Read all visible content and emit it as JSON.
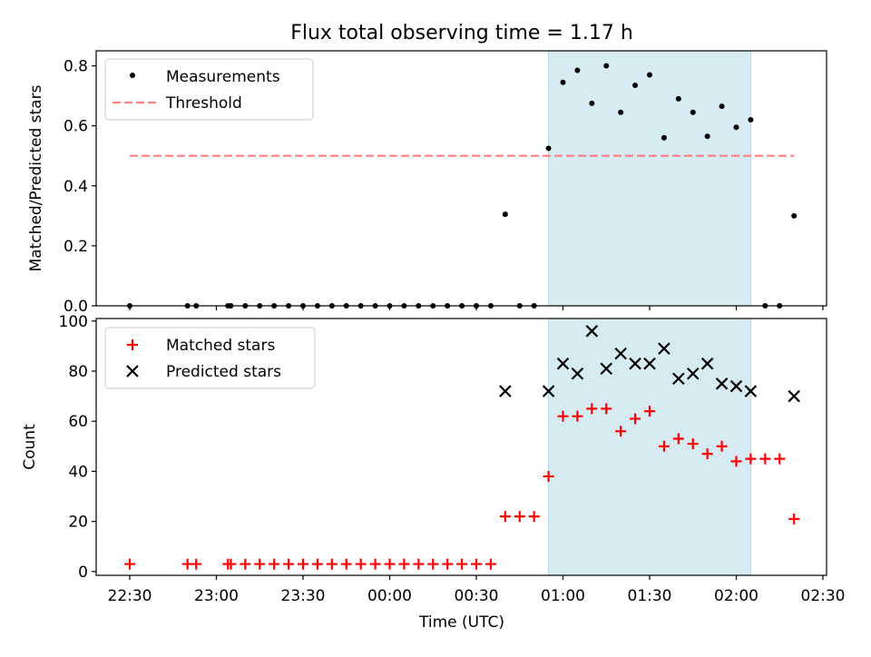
{
  "chart_data": [
    {
      "type": "scatter",
      "title": "Flux total observing time = 1.17 h",
      "ylabel": "Matched/Predicted stars",
      "ylim": [
        0,
        0.85
      ],
      "yticks": [
        "0.0",
        "0.2",
        "0.4",
        "0.6",
        "0.8"
      ],
      "ytick_values": [
        0,
        0.2,
        0.4,
        0.6,
        0.8
      ],
      "shaded_region": {
        "x_start": "00:55",
        "x_end": "02:05",
        "color": "#add8e6"
      },
      "threshold": {
        "name": "Threshold",
        "value": 0.5,
        "x_start": "22:30",
        "x_end": "02:20",
        "color": "#ff7f7f"
      },
      "legend_position": "upper-left",
      "series": [
        {
          "name": "Measurements",
          "color": "#000000",
          "marker": "dot",
          "points": [
            [
              "22:30",
              0
            ],
            [
              "22:50",
              0
            ],
            [
              "22:53",
              0
            ],
            [
              "23:04",
              0
            ],
            [
              "23:05",
              0
            ],
            [
              "23:10",
              0
            ],
            [
              "23:15",
              0
            ],
            [
              "23:20",
              0
            ],
            [
              "23:25",
              0
            ],
            [
              "23:30",
              0
            ],
            [
              "23:35",
              0
            ],
            [
              "23:40",
              0
            ],
            [
              "23:45",
              0
            ],
            [
              "23:50",
              0
            ],
            [
              "23:55",
              0
            ],
            [
              "00:00",
              0
            ],
            [
              "00:05",
              0
            ],
            [
              "00:10",
              0
            ],
            [
              "00:15",
              0
            ],
            [
              "00:20",
              0
            ],
            [
              "00:25",
              0
            ],
            [
              "00:30",
              0
            ],
            [
              "00:35",
              0
            ],
            [
              "00:40",
              0.305
            ],
            [
              "00:45",
              0
            ],
            [
              "00:50",
              0
            ],
            [
              "00:55",
              0.525
            ],
            [
              "01:00",
              0.745
            ],
            [
              "01:05",
              0.785
            ],
            [
              "01:10",
              0.675
            ],
            [
              "01:15",
              0.8
            ],
            [
              "01:20",
              0.645
            ],
            [
              "01:25",
              0.735
            ],
            [
              "01:30",
              0.77
            ],
            [
              "01:35",
              0.56
            ],
            [
              "01:40",
              0.69
            ],
            [
              "01:45",
              0.645
            ],
            [
              "01:50",
              0.565
            ],
            [
              "01:55",
              0.665
            ],
            [
              "02:00",
              0.595
            ],
            [
              "02:05",
              0.62
            ],
            [
              "02:10",
              0
            ],
            [
              "02:15",
              0
            ],
            [
              "02:20",
              0.3
            ]
          ]
        }
      ]
    },
    {
      "type": "scatter",
      "xlabel": "Time (UTC)",
      "ylabel": "Count",
      "ylim": [
        -1.5,
        101
      ],
      "yticks": [
        "0",
        "20",
        "40",
        "60",
        "80",
        "100"
      ],
      "ytick_values": [
        0,
        20,
        40,
        60,
        80,
        100
      ],
      "xticks": [
        "22:30",
        "23:00",
        "23:30",
        "00:00",
        "00:30",
        "01:00",
        "01:30",
        "02:00",
        "02:30"
      ],
      "shaded_region": {
        "x_start": "00:55",
        "x_end": "02:05",
        "color": "#add8e6"
      },
      "legend_position": "upper-left",
      "series": [
        {
          "name": "Matched stars",
          "color": "#ff0000",
          "marker": "plus",
          "points": [
            [
              "22:30",
              3
            ],
            [
              "22:50",
              3
            ],
            [
              "22:53",
              3
            ],
            [
              "23:04",
              3
            ],
            [
              "23:05",
              3
            ],
            [
              "23:10",
              3
            ],
            [
              "23:15",
              3
            ],
            [
              "23:20",
              3
            ],
            [
              "23:25",
              3
            ],
            [
              "23:30",
              3
            ],
            [
              "23:35",
              3
            ],
            [
              "23:40",
              3
            ],
            [
              "23:45",
              3
            ],
            [
              "23:50",
              3
            ],
            [
              "23:55",
              3
            ],
            [
              "00:00",
              3
            ],
            [
              "00:05",
              3
            ],
            [
              "00:10",
              3
            ],
            [
              "00:15",
              3
            ],
            [
              "00:20",
              3
            ],
            [
              "00:25",
              3
            ],
            [
              "00:30",
              3
            ],
            [
              "00:35",
              3
            ],
            [
              "00:40",
              22
            ],
            [
              "00:45",
              22
            ],
            [
              "00:50",
              22
            ],
            [
              "00:55",
              38
            ],
            [
              "01:00",
              62
            ],
            [
              "01:05",
              62
            ],
            [
              "01:10",
              65
            ],
            [
              "01:15",
              65
            ],
            [
              "01:20",
              56
            ],
            [
              "01:25",
              61
            ],
            [
              "01:30",
              64
            ],
            [
              "01:35",
              50
            ],
            [
              "01:40",
              53
            ],
            [
              "01:45",
              51
            ],
            [
              "01:50",
              47
            ],
            [
              "01:55",
              50
            ],
            [
              "02:00",
              44
            ],
            [
              "02:05",
              45
            ],
            [
              "02:10",
              45
            ],
            [
              "02:15",
              45
            ],
            [
              "02:20",
              21
            ]
          ]
        },
        {
          "name": "Predicted stars",
          "color": "#000000",
          "marker": "x",
          "points": [
            [
              "00:40",
              72
            ],
            [
              "00:55",
              72
            ],
            [
              "01:00",
              83
            ],
            [
              "01:05",
              79
            ],
            [
              "01:10",
              96
            ],
            [
              "01:15",
              81
            ],
            [
              "01:20",
              87
            ],
            [
              "01:25",
              83
            ],
            [
              "01:30",
              83
            ],
            [
              "01:35",
              89
            ],
            [
              "01:40",
              77
            ],
            [
              "01:45",
              79
            ],
            [
              "01:50",
              83
            ],
            [
              "01:55",
              75
            ],
            [
              "02:00",
              74
            ],
            [
              "02:05",
              72
            ],
            [
              "02:20",
              70
            ]
          ]
        }
      ]
    }
  ]
}
